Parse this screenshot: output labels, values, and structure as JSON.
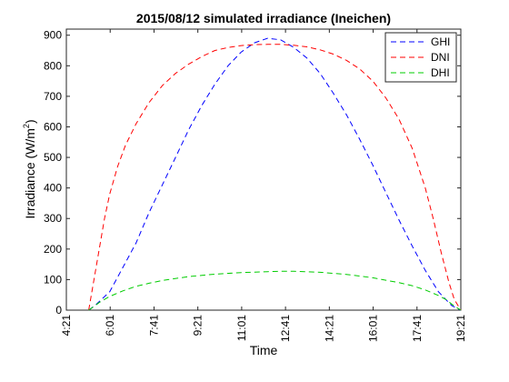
{
  "chart_data": {
    "type": "line",
    "title": "2015/08/12 simulated irradiance (Ineichen)",
    "xlabel": "Time",
    "ylabel_main": "Irradiance (W/m",
    "ylabel_sup": "2",
    "ylabel_close": ")",
    "xlim": [
      4.35,
      19.35
    ],
    "ylim": [
      0,
      920
    ],
    "yticks": [
      0,
      100,
      200,
      300,
      400,
      500,
      600,
      700,
      800,
      900
    ],
    "xticks": [
      {
        "v": 4.35,
        "label": "4:21"
      },
      {
        "v": 6.0167,
        "label": "6:01"
      },
      {
        "v": 7.6833,
        "label": "7:41"
      },
      {
        "v": 9.35,
        "label": "9:21"
      },
      {
        "v": 11.0167,
        "label": "11:01"
      },
      {
        "v": 12.6833,
        "label": "12:41"
      },
      {
        "v": 14.35,
        "label": "14:21"
      },
      {
        "v": 16.0167,
        "label": "16:01"
      },
      {
        "v": 17.6833,
        "label": "17:41"
      },
      {
        "v": 19.35,
        "label": "19:21"
      }
    ],
    "legend_position": "top-right",
    "series": [
      {
        "name": "GHI",
        "color": "#0000ff",
        "x": [
          5.2,
          5.5,
          6.0,
          6.5,
          7.0,
          7.5,
          8.0,
          8.5,
          9.0,
          9.5,
          10.0,
          10.5,
          11.0,
          11.5,
          12.0,
          12.5,
          13.0,
          13.5,
          14.0,
          14.5,
          15.0,
          15.5,
          16.0,
          16.5,
          17.0,
          17.5,
          18.0,
          18.5,
          19.0,
          19.35
        ],
        "y": [
          0,
          20,
          60,
          140,
          220,
          320,
          410,
          500,
          590,
          670,
          740,
          800,
          845,
          875,
          890,
          885,
          860,
          825,
          775,
          710,
          640,
          560,
          475,
          385,
          295,
          210,
          130,
          60,
          15,
          0
        ]
      },
      {
        "name": "DNI",
        "color": "#ff0000",
        "x": [
          5.2,
          5.4,
          5.6,
          5.8,
          6.0,
          6.3,
          6.6,
          7.0,
          7.5,
          8.0,
          8.5,
          9.0,
          9.5,
          10.0,
          10.5,
          11.0,
          11.5,
          12.0,
          12.5,
          13.0,
          13.5,
          14.0,
          14.5,
          15.0,
          15.5,
          16.0,
          16.5,
          17.0,
          17.5,
          18.0,
          18.3,
          18.6,
          18.9,
          19.1,
          19.35
        ],
        "y": [
          0,
          100,
          200,
          300,
          380,
          470,
          540,
          610,
          680,
          735,
          775,
          805,
          830,
          850,
          860,
          866,
          869,
          870,
          870,
          867,
          862,
          852,
          838,
          818,
          790,
          750,
          695,
          625,
          530,
          400,
          300,
          190,
          90,
          35,
          0
        ]
      },
      {
        "name": "DHI",
        "color": "#00cc00",
        "x": [
          5.2,
          5.4,
          5.6,
          5.8,
          6.0,
          6.5,
          7.0,
          7.5,
          8.0,
          9.0,
          10.0,
          11.0,
          12.0,
          12.5,
          13.0,
          14.0,
          15.0,
          16.0,
          17.0,
          17.5,
          18.0,
          18.5,
          18.8,
          19.0,
          19.2,
          19.35
        ],
        "y": [
          0,
          12,
          25,
          35,
          45,
          63,
          78,
          88,
          97,
          110,
          118,
          123,
          126,
          127,
          127,
          124,
          117,
          106,
          90,
          80,
          66,
          48,
          34,
          20,
          8,
          0
        ]
      }
    ]
  }
}
